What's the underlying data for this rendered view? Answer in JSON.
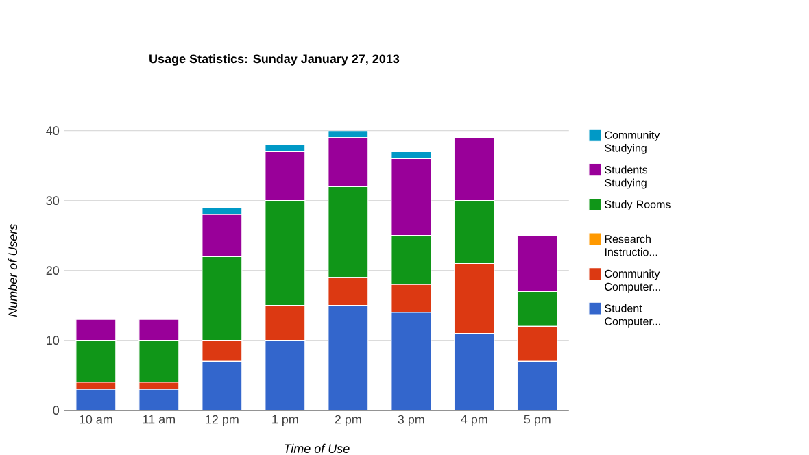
{
  "chart_data": {
    "type": "bar",
    "stacked": true,
    "title": "Usage Statistics: Sunday January 27, 2013",
    "xlabel": "Time of Use",
    "ylabel": "Number of Users",
    "categories": [
      "10 am",
      "11 am",
      "12 pm",
      "1 pm",
      "2 pm",
      "3 pm",
      "4 pm",
      "5 pm"
    ],
    "series": [
      {
        "name": "Student Computer...",
        "color": "#3366cc",
        "values": [
          3,
          3,
          7,
          10,
          15,
          14,
          11,
          7
        ]
      },
      {
        "name": "Community Computer...",
        "color": "#dc3912",
        "values": [
          1,
          1,
          3,
          5,
          4,
          4,
          10,
          5
        ]
      },
      {
        "name": "Research Instructio...",
        "color": "#ff9900",
        "values": [
          0,
          0,
          0,
          0,
          0,
          0,
          0,
          0
        ]
      },
      {
        "name": "Study Rooms",
        "color": "#109618",
        "values": [
          6,
          6,
          12,
          15,
          13,
          7,
          9,
          5
        ]
      },
      {
        "name": "Students Studying",
        "color": "#990099",
        "values": [
          3,
          3,
          6,
          7,
          7,
          11,
          9,
          8
        ]
      },
      {
        "name": "Community Studying",
        "color": "#0099c6",
        "values": [
          0,
          0,
          1,
          1,
          1,
          1,
          0,
          0
        ]
      }
    ],
    "ylim": [
      0,
      40
    ],
    "yticks": [
      0,
      10,
      20,
      30,
      40
    ],
    "grid": "y",
    "legend": "right"
  }
}
